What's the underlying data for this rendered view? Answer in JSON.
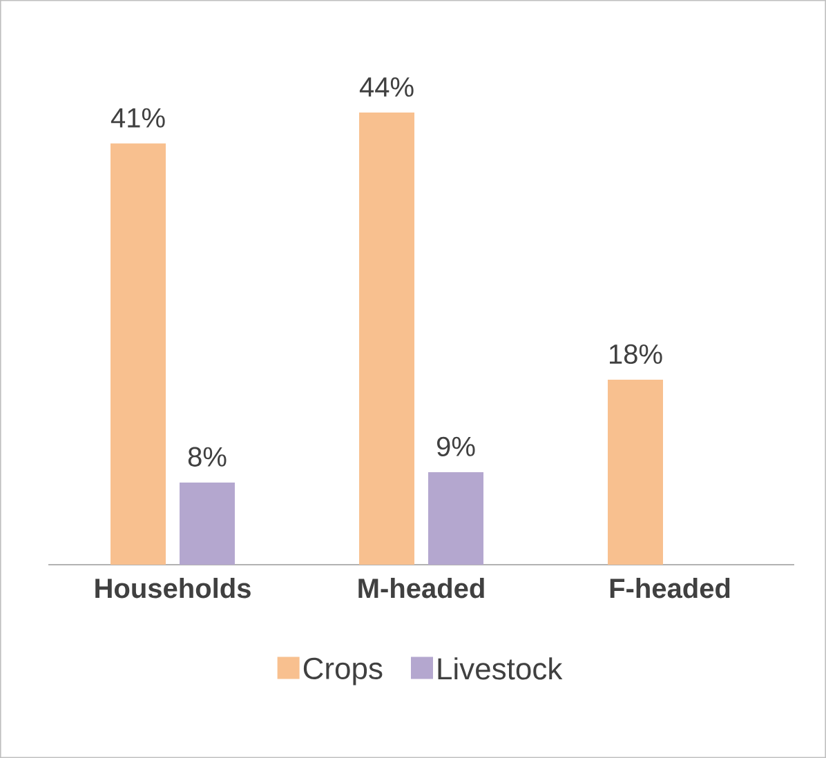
{
  "chart_data": {
    "type": "bar",
    "categories": [
      "Households",
      "M-headed",
      "F-headed"
    ],
    "series": [
      {
        "name": "Crops",
        "color": "#f8c08f",
        "values": [
          41,
          44,
          18
        ],
        "value_labels": [
          "41%",
          "44%",
          "18%"
        ]
      },
      {
        "name": "Livestock",
        "color": "#b4a7cf",
        "values": [
          8,
          9,
          null
        ],
        "value_labels": [
          "8%",
          "9%",
          null
        ]
      }
    ],
    "legend": "bottom"
  }
}
